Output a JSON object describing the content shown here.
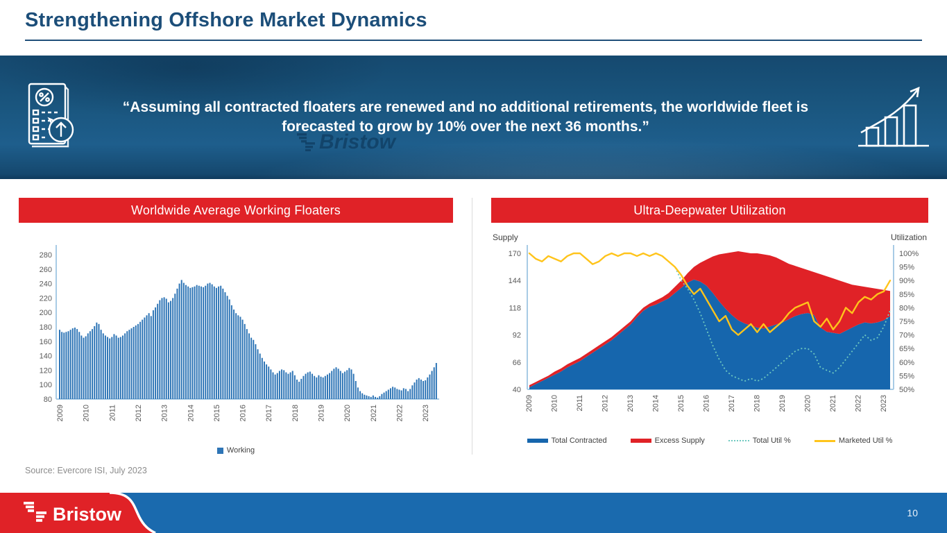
{
  "slide": {
    "title": "Strengthening Offshore Market Dynamics",
    "quote": "“Assuming all contracted floaters are renewed and no additional retirements, the worldwide fleet is forecasted to grow by 10% over the next 36 months.”",
    "watermark": "Bristow",
    "source": "Source: Evercore ISI, July 2023",
    "brand": "Bristow",
    "page_number": "10"
  },
  "icons": {
    "left_banner_icon": "report-percent-growth-icon",
    "right_banner_icon": "growth-bar-chart-arrow-icon",
    "brand_icon": "bristow-pinwheel-icon"
  },
  "colors": {
    "title_navy": "#1C4E79",
    "banner_blue": "#1A567F",
    "header_red": "#E02227",
    "bar_blue": "#2E75B6",
    "area_blue": "#1666AD",
    "area_red": "#E02227",
    "line_yellow": "#FFC41B",
    "line_teal": "#6FC9C0",
    "axis_light_blue": "#A8CBE5",
    "footer_blue": "#1A6AAE",
    "source_gray": "#8C8C8C"
  },
  "left_panel": {
    "header": "Worldwide Average Working Floaters"
  },
  "right_panel": {
    "header": "Ultra-Deepwater Utilization",
    "left_axis_label": "Supply",
    "right_axis_label": "Utilization"
  },
  "chart_data": [
    {
      "type": "bar",
      "title": "Worldwide Average Working Floaters",
      "x_start": "2009-01",
      "frequency": "monthly",
      "x_tick_labels": [
        "2009",
        "2010",
        "2011",
        "2012",
        "2013",
        "2014",
        "2015",
        "2016",
        "2017",
        "2018",
        "2019",
        "2020",
        "2021",
        "2022",
        "2023"
      ],
      "ylim": [
        80,
        280
      ],
      "ytick_step": 20,
      "grid": false,
      "legend_position": "bottom",
      "series": [
        {
          "name": "Working",
          "color": "#2E75B6",
          "values": [
            176,
            173,
            172,
            173,
            174,
            176,
            178,
            179,
            177,
            173,
            168,
            165,
            167,
            171,
            174,
            177,
            181,
            186,
            184,
            176,
            171,
            168,
            166,
            164,
            166,
            170,
            168,
            165,
            166,
            168,
            171,
            174,
            176,
            178,
            180,
            182,
            184,
            187,
            190,
            193,
            196,
            199,
            195,
            203,
            207,
            212,
            217,
            220,
            221,
            219,
            214,
            216,
            220,
            226,
            233,
            240,
            245,
            241,
            238,
            236,
            234,
            235,
            236,
            238,
            237,
            236,
            235,
            237,
            240,
            241,
            239,
            236,
            234,
            236,
            237,
            233,
            228,
            223,
            218,
            210,
            204,
            199,
            196,
            194,
            190,
            184,
            177,
            171,
            165,
            162,
            156,
            149,
            143,
            137,
            132,
            128,
            125,
            121,
            117,
            114,
            116,
            119,
            121,
            120,
            117,
            115,
            117,
            119,
            113,
            107,
            104,
            108,
            112,
            115,
            117,
            118,
            115,
            112,
            110,
            113,
            111,
            110,
            112,
            114,
            116,
            119,
            122,
            124,
            122,
            119,
            116,
            118,
            120,
            123,
            121,
            115,
            105,
            96,
            91,
            88,
            86,
            85,
            84,
            83,
            85,
            83,
            82,
            84,
            87,
            89,
            91,
            93,
            95,
            97,
            96,
            94,
            93,
            92,
            95,
            94,
            91,
            94,
            99,
            103,
            107,
            109,
            107,
            105,
            106,
            110,
            114,
            119,
            124,
            130
          ]
        }
      ]
    },
    {
      "type": "area",
      "title": "Ultra-Deepwater Utilization",
      "x_start": "2009-Q1",
      "frequency": "quarterly",
      "x_tick_labels": [
        "2009",
        "2010",
        "2011",
        "2012",
        "2013",
        "2014",
        "2015",
        "2016",
        "2017",
        "2018",
        "2019",
        "2020",
        "2021",
        "2022",
        "2023"
      ],
      "left_axis_label": "Supply",
      "right_axis_label": "Utilization",
      "left_ylim": [
        40,
        170
      ],
      "left_yticks": [
        40,
        66,
        92,
        118,
        144,
        170
      ],
      "right_ylim": [
        50,
        100
      ],
      "right_ytick_step": 5,
      "grid": false,
      "legend_position": "bottom",
      "series": [
        {
          "name": "Total Contracted",
          "axis": "left",
          "style": "area",
          "color": "#1666AD",
          "values": [
            42,
            45,
            48,
            51,
            54,
            57,
            61,
            64,
            67,
            71,
            75,
            79,
            83,
            87,
            92,
            97,
            102,
            109,
            115,
            119,
            121,
            124,
            127,
            132,
            137,
            142,
            145,
            143,
            139,
            132,
            124,
            117,
            111,
            106,
            103,
            101,
            99,
            98,
            100,
            102,
            104,
            107,
            110,
            112,
            113,
            111,
            99,
            95,
            94,
            93,
            96,
            99,
            102,
            104,
            103,
            104,
            106,
            110
          ]
        },
        {
          "name": "Excess Supply",
          "axis": "left",
          "style": "area-stacked",
          "color": "#E02227",
          "values": [
            2,
            2,
            2,
            2,
            3,
            3,
            3,
            3,
            3,
            3,
            3,
            3,
            3,
            3,
            3,
            3,
            3,
            3,
            3,
            3,
            4,
            4,
            5,
            6,
            7,
            9,
            12,
            18,
            25,
            35,
            45,
            53,
            60,
            66,
            68,
            69,
            71,
            71,
            68,
            64,
            59,
            53,
            48,
            44,
            41,
            41,
            51,
            53,
            52,
            51,
            46,
            41,
            37,
            34,
            34,
            32,
            29,
            24
          ]
        },
        {
          "name": "Total Util %",
          "axis": "right",
          "style": "dotted-line",
          "color": "#6FC9C0",
          "values": [
            100,
            98,
            97,
            99,
            98,
            97,
            99,
            100,
            100,
            98,
            96,
            97,
            99,
            100,
            99,
            100,
            100,
            99,
            100,
            99,
            100,
            99,
            97,
            95,
            90,
            87,
            83,
            78,
            72,
            66,
            61,
            57,
            55,
            54,
            53,
            54,
            53,
            54,
            56,
            58,
            60,
            62,
            64,
            65,
            65,
            63,
            58,
            57,
            56,
            58,
            61,
            64,
            67,
            70,
            68,
            69,
            73,
            79
          ]
        },
        {
          "name": "Marketed Util %",
          "axis": "right",
          "style": "line",
          "color": "#FFC41B",
          "values": [
            100,
            98,
            97,
            99,
            98,
            97,
            99,
            100,
            100,
            98,
            96,
            97,
            99,
            100,
            99,
            100,
            100,
            99,
            100,
            99,
            100,
            99,
            97,
            95,
            92,
            88,
            85,
            87,
            83,
            79,
            75,
            77,
            72,
            70,
            72,
            74,
            71,
            74,
            71,
            73,
            75,
            78,
            80,
            81,
            82,
            75,
            73,
            76,
            72,
            75,
            80,
            78,
            82,
            84,
            83,
            85,
            86,
            90
          ]
        }
      ]
    }
  ]
}
